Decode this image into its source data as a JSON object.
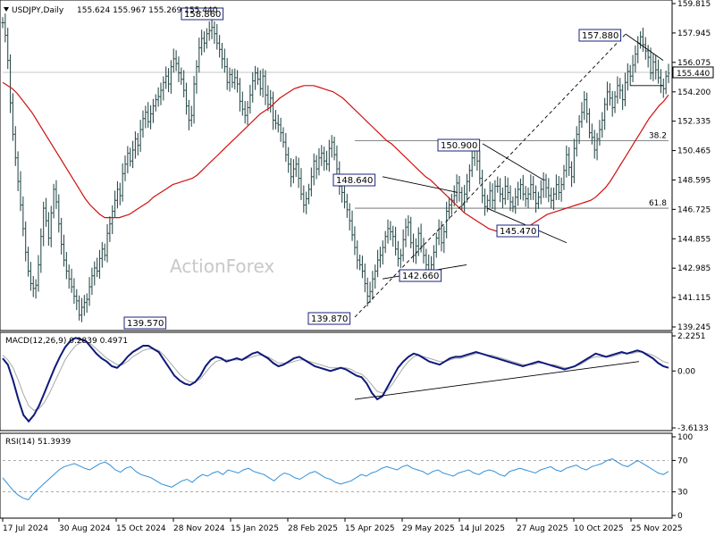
{
  "chart_data": {
    "type": "candlestick",
    "symbol_header": "USDJPY,Daily",
    "ohlc_header": "155.624 155.967 155.269 155.440",
    "watermark": "ActionForex",
    "x_ticks": [
      "17 Jul 2024",
      "30 Aug 2024",
      "15 Oct 2024",
      "28 Nov 2024",
      "15 Jan 2025",
      "28 Feb 2025",
      "15 Apr 2025",
      "29 May 2025",
      "14 Jul 2025",
      "27 Aug 2025",
      "10 Oct 2025",
      "25 Nov 2025"
    ],
    "price_axis": {
      "ticks": [
        "159.815",
        "157.945",
        "156.075",
        "154.200",
        "152.335",
        "150.465",
        "148.595",
        "146.725",
        "144.855",
        "142.985",
        "141.115",
        "139.245"
      ],
      "ylim": [
        139.245,
        159.815
      ],
      "current_label": "155.440",
      "current_value": 155.44
    },
    "price_series": [
      {
        "name": "price",
        "values": [
          158.6,
          157.8,
          156.2,
          153.5,
          151.5,
          150.0,
          148.5,
          147.0,
          145.5,
          144.0,
          142.8,
          142.0,
          141.7,
          141.9,
          143.2,
          145.0,
          146.8,
          146.0,
          144.9,
          146.5,
          148.0,
          147.2,
          145.8,
          144.5,
          143.5,
          142.8,
          142.3,
          141.8,
          141.2,
          140.9,
          140.0,
          140.5,
          140.8,
          141.0,
          141.8,
          142.5,
          143.0,
          142.8,
          143.6,
          144.2,
          143.8,
          145.2,
          145.8,
          146.6,
          147.3,
          148.0,
          147.6,
          149.0,
          149.6,
          150.3,
          149.8,
          150.5,
          151.2,
          150.8,
          151.8,
          152.5,
          152.9,
          152.3,
          152.8,
          153.3,
          153.7,
          153.9,
          154.3,
          154.8,
          155.2,
          154.7,
          155.8,
          156.3,
          156.0,
          155.4,
          155.0,
          154.3,
          153.3,
          152.4,
          152.7,
          154.7,
          155.8,
          157.0,
          157.6,
          157.3,
          157.9,
          158.1,
          158.3,
          157.9,
          157.3,
          156.9,
          156.3,
          155.8,
          154.8,
          155.3,
          154.8,
          155.1,
          154.7,
          153.6,
          153.1,
          152.7,
          153.2,
          154.0,
          154.9,
          155.4,
          155.0,
          154.4,
          155.2,
          154.0,
          153.4,
          153.8,
          152.4,
          152.2,
          152.1,
          151.6,
          151.0,
          150.2,
          149.6,
          148.8,
          149.3,
          149.6,
          148.7,
          147.7,
          147.0,
          147.4,
          148.0,
          148.8,
          149.8,
          149.3,
          150.0,
          150.3,
          149.8,
          149.6,
          150.6,
          151.0,
          150.2,
          149.3,
          148.2,
          147.8,
          147.2,
          146.7,
          146.0,
          145.1,
          144.3,
          143.5,
          143.2,
          142.8,
          142.0,
          141.2,
          141.5,
          142.3,
          142.8,
          143.5,
          143.8,
          144.3,
          145.0,
          145.5,
          145.3,
          145.0,
          144.2,
          143.6,
          143.8,
          144.8,
          145.6,
          145.9,
          144.6,
          143.8,
          144.4,
          145.2,
          144.4,
          143.8,
          143.2,
          142.8,
          143.2,
          144.0,
          144.9,
          145.5,
          144.6,
          145.3,
          146.6,
          147.0,
          147.3,
          147.6,
          148.4,
          147.8,
          147.0,
          147.7,
          148.5,
          149.2,
          150.0,
          150.6,
          149.8,
          148.7,
          147.6,
          146.9,
          147.3,
          147.9,
          147.3,
          148.2,
          148.2,
          147.7,
          147.4,
          148.2,
          147.8,
          147.2,
          146.9,
          147.5,
          148.0,
          148.3,
          147.7,
          147.4,
          147.7,
          148.3,
          147.8,
          147.1,
          147.5,
          148.0,
          148.6,
          148.1,
          147.6,
          147.3,
          147.7,
          148.3,
          147.8,
          148.3,
          149.2,
          150.2,
          149.4,
          148.8,
          150.6,
          151.5,
          152.3,
          152.9,
          153.7,
          152.8,
          151.6,
          151.3,
          150.5,
          151.2,
          151.8,
          152.4,
          153.4,
          154.2,
          153.8,
          153.2,
          153.9,
          154.6,
          154.3,
          153.7,
          154.8,
          155.5,
          155.2,
          155.9,
          156.6,
          157.3,
          157.7,
          157.2,
          156.8,
          156.4,
          155.4,
          156.1,
          155.6,
          155.1,
          154.6,
          154.4,
          155.2,
          155.4
        ]
      },
      {
        "name": "ma_red",
        "values": [
          154.8,
          154.6,
          154.4,
          154.1,
          153.7,
          153.3,
          152.9,
          152.4,
          151.9,
          151.4,
          150.9,
          150.4,
          149.9,
          149.4,
          148.9,
          148.4,
          147.9,
          147.4,
          147.0,
          146.7,
          146.4,
          146.2,
          146.2,
          146.2,
          146.2,
          146.3,
          146.4,
          146.6,
          146.8,
          147.0,
          147.2,
          147.5,
          147.7,
          147.9,
          148.1,
          148.3,
          148.4,
          148.5,
          148.6,
          148.7,
          148.9,
          149.2,
          149.5,
          149.8,
          150.1,
          150.4,
          150.7,
          151.0,
          151.3,
          151.6,
          151.9,
          152.2,
          152.5,
          152.8,
          153.0,
          153.2,
          153.5,
          153.8,
          154.0,
          154.2,
          154.4,
          154.5,
          154.6,
          154.6,
          154.6,
          154.5,
          154.4,
          154.3,
          154.2,
          154.0,
          153.8,
          153.5,
          153.2,
          152.9,
          152.6,
          152.3,
          152.0,
          151.7,
          151.4,
          151.1,
          150.9,
          150.6,
          150.3,
          150.0,
          149.7,
          149.4,
          149.1,
          148.8,
          148.6,
          148.3,
          148.0,
          147.7,
          147.4,
          147.1,
          146.8,
          146.5,
          146.3,
          146.1,
          145.9,
          145.7,
          145.5,
          145.4,
          145.3,
          145.2,
          145.2,
          145.2,
          145.3,
          145.4,
          145.6,
          145.8,
          146.0,
          146.2,
          146.4,
          146.5,
          146.6,
          146.7,
          146.8,
          146.9,
          147.0,
          147.1,
          147.2,
          147.3,
          147.5,
          147.8,
          148.1,
          148.5,
          149.0,
          149.5,
          150.0,
          150.5,
          151.0,
          151.5,
          152.0,
          152.5,
          152.9,
          153.3,
          153.6,
          154.0
        ]
      }
    ],
    "price_annotations": [
      {
        "label": "158.860",
        "value": 158.86
      },
      {
        "label": "139.570",
        "value": 139.57
      },
      {
        "label": "148.640",
        "value": 148.64
      },
      {
        "label": "139.870",
        "value": 139.87
      },
      {
        "label": "142.660",
        "value": 142.66
      },
      {
        "label": "150.900",
        "value": 150.9
      },
      {
        "label": "145.470",
        "value": 145.47
      },
      {
        "label": "157.880",
        "value": 157.88
      }
    ],
    "fib_levels": [
      {
        "label": "38.2",
        "value": 151.1
      },
      {
        "label": "61.8",
        "value": 146.8
      }
    ],
    "macd": {
      "header": "MACD(12,26,9) 0.2839 0.4971",
      "ticks": [
        "2.2251",
        "0.00",
        "-3.6133"
      ],
      "ylim": [
        -3.6133,
        2.2251
      ],
      "macd_values": [
        0.8,
        0.4,
        -0.6,
        -1.8,
        -2.8,
        -3.2,
        -2.8,
        -2.2,
        -1.4,
        -0.6,
        0.2,
        0.9,
        1.5,
        1.9,
        2.1,
        2.0,
        1.9,
        1.5,
        1.1,
        0.8,
        0.6,
        0.3,
        0.2,
        0.5,
        0.9,
        1.2,
        1.4,
        1.6,
        1.6,
        1.4,
        1.2,
        0.7,
        0.2,
        -0.3,
        -0.6,
        -0.8,
        -0.9,
        -0.7,
        -0.3,
        0.3,
        0.7,
        0.9,
        0.8,
        0.6,
        0.7,
        0.8,
        0.7,
        0.9,
        1.1,
        1.2,
        1.0,
        0.8,
        0.5,
        0.3,
        0.4,
        0.6,
        0.8,
        0.9,
        0.7,
        0.5,
        0.3,
        0.2,
        0.1,
        0.0,
        0.1,
        0.2,
        0.1,
        -0.1,
        -0.3,
        -0.4,
        -0.8,
        -1.4,
        -1.8,
        -1.6,
        -1.0,
        -0.4,
        0.2,
        0.6,
        0.9,
        1.1,
        1.0,
        0.8,
        0.6,
        0.5,
        0.4,
        0.6,
        0.8,
        0.9,
        0.9,
        1.0,
        1.1,
        1.2,
        1.1,
        1.0,
        0.9,
        0.8,
        0.7,
        0.6,
        0.5,
        0.4,
        0.3,
        0.4,
        0.5,
        0.6,
        0.5,
        0.4,
        0.3,
        0.2,
        0.1,
        0.2,
        0.3,
        0.5,
        0.7,
        0.9,
        1.1,
        1.0,
        0.9,
        1.0,
        1.1,
        1.2,
        1.1,
        1.2,
        1.3,
        1.2,
        1.0,
        0.8,
        0.5,
        0.3,
        0.2
      ],
      "signal_values": [
        1.0,
        0.7,
        0.2,
        -0.6,
        -1.5,
        -2.2,
        -2.5,
        -2.4,
        -2.0,
        -1.4,
        -0.7,
        0.0,
        0.7,
        1.2,
        1.6,
        1.8,
        1.9,
        1.7,
        1.4,
        1.1,
        0.8,
        0.6,
        0.4,
        0.4,
        0.6,
        0.9,
        1.1,
        1.3,
        1.4,
        1.4,
        1.3,
        1.0,
        0.6,
        0.2,
        -0.2,
        -0.5,
        -0.7,
        -0.7,
        -0.5,
        -0.1,
        0.3,
        0.6,
        0.7,
        0.7,
        0.7,
        0.7,
        0.7,
        0.8,
        0.9,
        1.0,
        1.0,
        0.9,
        0.7,
        0.5,
        0.5,
        0.5,
        0.6,
        0.7,
        0.7,
        0.6,
        0.5,
        0.4,
        0.3,
        0.2,
        0.2,
        0.2,
        0.2,
        0.1,
        -0.1,
        -0.2,
        -0.5,
        -0.9,
        -1.3,
        -1.4,
        -1.2,
        -0.8,
        -0.3,
        0.2,
        0.6,
        0.9,
        1.0,
        0.9,
        0.8,
        0.7,
        0.6,
        0.6,
        0.7,
        0.8,
        0.8,
        0.9,
        1.0,
        1.1,
        1.1,
        1.0,
        1.0,
        0.9,
        0.8,
        0.7,
        0.6,
        0.5,
        0.4,
        0.4,
        0.4,
        0.5,
        0.5,
        0.4,
        0.4,
        0.3,
        0.2,
        0.2,
        0.3,
        0.4,
        0.6,
        0.8,
        0.9,
        0.9,
        0.9,
        0.9,
        1.0,
        1.1,
        1.1,
        1.1,
        1.2,
        1.2,
        1.1,
        1.0,
        0.8,
        0.6,
        0.5
      ]
    },
    "rsi": {
      "header": "RSI(14) 51.3939",
      "ticks": [
        "100",
        "70",
        "30",
        "0"
      ],
      "ylim": [
        0,
        100
      ],
      "values": [
        48,
        40,
        32,
        26,
        22,
        20,
        28,
        34,
        40,
        46,
        52,
        58,
        62,
        64,
        66,
        63,
        60,
        58,
        62,
        66,
        68,
        64,
        58,
        55,
        60,
        62,
        56,
        52,
        50,
        48,
        44,
        40,
        38,
        36,
        40,
        44,
        46,
        42,
        48,
        52,
        50,
        54,
        56,
        52,
        58,
        56,
        54,
        58,
        60,
        56,
        54,
        52,
        48,
        44,
        50,
        54,
        52,
        48,
        46,
        50,
        54,
        56,
        52,
        48,
        46,
        42,
        40,
        42,
        44,
        48,
        52,
        50,
        54,
        56,
        60,
        62,
        60,
        58,
        62,
        64,
        60,
        58,
        56,
        52,
        56,
        58,
        54,
        52,
        50,
        54,
        56,
        58,
        54,
        52,
        56,
        58,
        56,
        52,
        50,
        56,
        58,
        60,
        58,
        56,
        54,
        58,
        60,
        62,
        58,
        56,
        60,
        62,
        64,
        60,
        58,
        62,
        64,
        66,
        70,
        72,
        68,
        64,
        62,
        66,
        70,
        66,
        62,
        58,
        54,
        52,
        56
      ]
    }
  }
}
